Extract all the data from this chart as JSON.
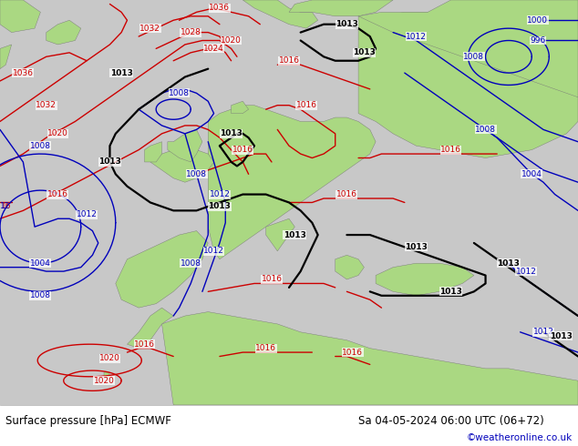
{
  "title_left": "Surface pressure [hPa] ECMWF",
  "title_right": "Sa 04-05-2024 06:00 UTC (06+72)",
  "credit": "©weatheronline.co.uk",
  "land_color": "#aad882",
  "sea_color": "#c8c8c8",
  "coast_color": "#888888",
  "fig_width": 6.34,
  "fig_height": 4.9,
  "dpi": 100,
  "footer_bg": "#f0f0f0",
  "title_fontsize": 8.5,
  "credit_fontsize": 7.5,
  "isobar_fontsize": 6.5,
  "black_color": "#000000",
  "red_color": "#cc0000",
  "blue_color": "#0000bb",
  "black_lw": 1.6,
  "red_lw": 1.0,
  "blue_lw": 1.0
}
